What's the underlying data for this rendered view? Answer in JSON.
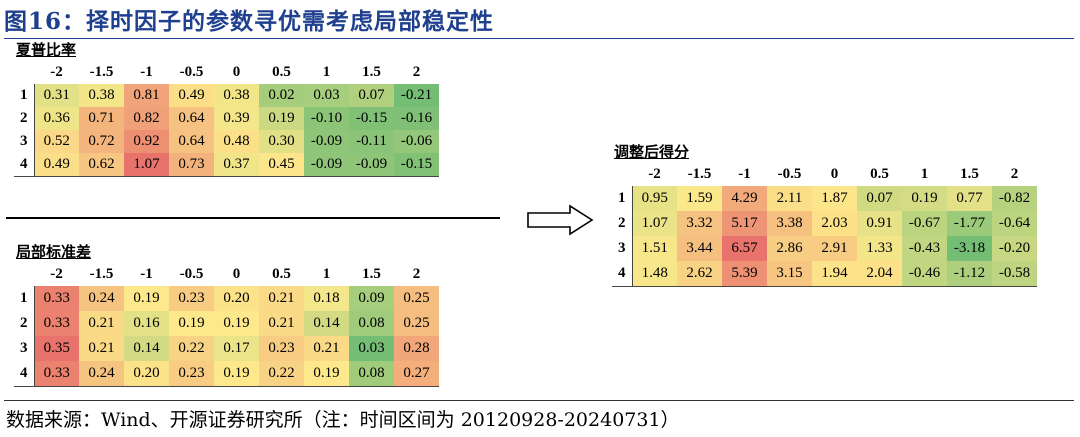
{
  "figure_title": "图16：择时因子的参数寻优需考虑局部稳定性",
  "source_note": "数据来源：Wind、开源证券研究所（注：时间区间为 20120928-20240731）",
  "arrow": {
    "icon": "right-arrow-icon"
  },
  "chart_data": [
    {
      "type": "heatmap",
      "title": "夏普比率",
      "columns": [
        "-2",
        "-1.5",
        "-1",
        "-0.5",
        "0",
        "0.5",
        "1",
        "1.5",
        "2"
      ],
      "rows": [
        "1",
        "2",
        "3",
        "4"
      ],
      "values": [
        [
          "0.31",
          "0.38",
          "0.81",
          "0.49",
          "0.38",
          "0.02",
          "0.03",
          "0.07",
          "-0.21"
        ],
        [
          "0.36",
          "0.71",
          "0.82",
          "0.64",
          "0.39",
          "0.19",
          "-0.10",
          "-0.15",
          "-0.16"
        ],
        [
          "0.52",
          "0.72",
          "0.92",
          "0.64",
          "0.48",
          "0.30",
          "-0.09",
          "-0.11",
          "-0.06"
        ],
        [
          "0.49",
          "0.62",
          "1.07",
          "0.73",
          "0.37",
          "0.45",
          "-0.09",
          "-0.09",
          "-0.15"
        ]
      ],
      "color_scale": {
        "high": "#e8736c",
        "mid": "#fde98b",
        "low": "#74bd74"
      }
    },
    {
      "type": "heatmap",
      "title": "局部标准差",
      "columns": [
        "-2",
        "-1.5",
        "-1",
        "-0.5",
        "0",
        "0.5",
        "1",
        "1.5",
        "2"
      ],
      "rows": [
        "1",
        "2",
        "3",
        "4"
      ],
      "values": [
        [
          "0.33",
          "0.24",
          "0.19",
          "0.23",
          "0.20",
          "0.21",
          "0.18",
          "0.09",
          "0.25"
        ],
        [
          "0.33",
          "0.21",
          "0.16",
          "0.19",
          "0.19",
          "0.21",
          "0.14",
          "0.08",
          "0.25"
        ],
        [
          "0.35",
          "0.21",
          "0.14",
          "0.22",
          "0.17",
          "0.23",
          "0.21",
          "0.03",
          "0.28"
        ],
        [
          "0.33",
          "0.24",
          "0.20",
          "0.23",
          "0.19",
          "0.22",
          "0.19",
          "0.08",
          "0.27"
        ]
      ],
      "color_scale": {
        "high": "#e8736c",
        "mid": "#fde98b",
        "low": "#74bd74"
      }
    },
    {
      "type": "heatmap",
      "title": "调整后得分",
      "columns": [
        "-2",
        "-1.5",
        "-1",
        "-0.5",
        "0",
        "0.5",
        "1",
        "1.5",
        "2"
      ],
      "rows": [
        "1",
        "2",
        "3",
        "4"
      ],
      "values": [
        [
          "0.95",
          "1.59",
          "4.29",
          "2.11",
          "1.87",
          "0.07",
          "0.19",
          "0.77",
          "-0.82"
        ],
        [
          "1.07",
          "3.32",
          "5.17",
          "3.38",
          "2.03",
          "0.91",
          "-0.67",
          "-1.77",
          "-0.64"
        ],
        [
          "1.51",
          "3.44",
          "6.57",
          "2.86",
          "2.91",
          "1.33",
          "-0.43",
          "-3.18",
          "-0.20"
        ],
        [
          "1.48",
          "2.62",
          "5.39",
          "3.15",
          "1.94",
          "2.04",
          "-0.46",
          "-1.12",
          "-0.58"
        ]
      ],
      "color_scale": {
        "high": "#e8736c",
        "mid": "#fde98b",
        "low": "#74bd74"
      }
    }
  ]
}
